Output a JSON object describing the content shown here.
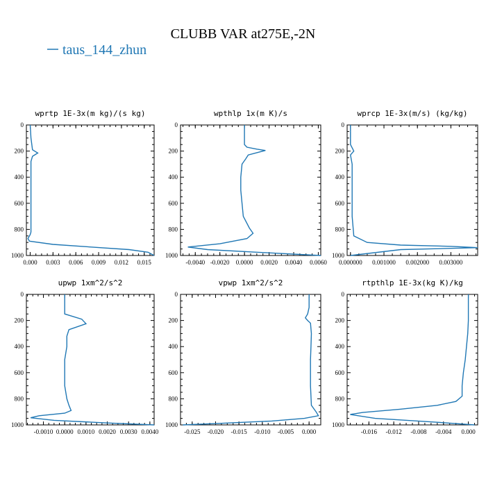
{
  "figure": {
    "title": "CLUBB VAR at275E,-2N",
    "legend_label": "taus_144_zhun",
    "series_color": "#1f77b4"
  },
  "chart_data": [
    {
      "type": "line",
      "title": "wprtp  1E-3x(m kg)/(s kg)",
      "xlim": [
        -0.0005,
        0.0163
      ],
      "ylim": [
        1000,
        0
      ],
      "xticks": [
        0.0,
        0.003,
        0.006,
        0.009,
        0.012,
        0.015
      ],
      "xtick_labels": [
        "0.000",
        "0.003",
        "0.006",
        "0.009",
        "0.012",
        "0.015"
      ],
      "yticks": [
        0,
        200,
        400,
        600,
        800,
        1000
      ],
      "ytick_labels": [
        "0",
        "200",
        "400",
        "600",
        "800",
        "1000"
      ],
      "series": [
        {
          "x": [
            0.0,
            0.0001,
            0.0003,
            0.001,
            0.0003,
            0.0001,
            0.0001,
            0.0001,
            0.0001,
            0.0001,
            0.0001,
            0.0001,
            0.0,
            -0.0003,
            -0.0001,
            0.003,
            0.008,
            0.013,
            0.0155,
            0.0163
          ],
          "y": [
            0,
            100,
            190,
            215,
            240,
            280,
            400,
            500,
            600,
            700,
            780,
            820,
            840,
            870,
            890,
            915,
            935,
            955,
            975,
            1000
          ]
        }
      ]
    },
    {
      "type": "line",
      "title": "wpthlp  1x(m K)/s",
      "xlim": [
        -0.0052,
        0.0062
      ],
      "ylim": [
        1000,
        0
      ],
      "xticks": [
        -0.004,
        -0.002,
        0.0,
        0.002,
        0.004,
        0.006
      ],
      "xtick_labels": [
        "-0.0040",
        "-0.0020",
        "0.0000",
        "0.0020",
        "0.0040",
        "0.0060"
      ],
      "yticks": [
        0,
        200,
        400,
        600,
        800,
        1000
      ],
      "ytick_labels": [
        "0",
        "200",
        "400",
        "600",
        "800",
        "1000"
      ],
      "series": [
        {
          "x": [
            0.0,
            0.0,
            0.0,
            0.0002,
            0.001,
            0.0017,
            0.0003,
            0.0001,
            -0.0002,
            -0.0003,
            -0.0003,
            -0.0002,
            -0.0001,
            0.0004,
            0.0007,
            0.0002,
            -0.002,
            -0.0046,
            -0.003,
            0.002,
            0.0062
          ],
          "y": [
            0,
            100,
            150,
            170,
            185,
            195,
            230,
            260,
            300,
            400,
            500,
            600,
            700,
            790,
            830,
            870,
            910,
            935,
            955,
            980,
            1000
          ]
        }
      ]
    },
    {
      "type": "line",
      "title": "wprcp  1E-3x(m/s) (kg/kg)",
      "xlim": [
        -0.0001,
        0.0038
      ],
      "ylim": [
        1000,
        0
      ],
      "xticks": [
        0.0,
        0.001,
        0.002,
        0.003
      ],
      "xtick_labels": [
        "0.000000",
        "0.001000",
        "0.002000",
        "0.003000"
      ],
      "yticks": [
        0,
        200,
        400,
        600,
        800,
        1000
      ],
      "ytick_labels": [
        "0",
        "200",
        "400",
        "600",
        "800",
        "1000"
      ],
      "series": [
        {
          "x": [
            0.0,
            0.0,
            0.0001,
            0.0,
            5e-05,
            5e-05,
            5e-05,
            5e-05,
            5e-05,
            0.0001,
            0.0005,
            0.0015,
            0.003,
            0.0038,
            0.0015,
            0.0
          ],
          "y": [
            0,
            150,
            200,
            230,
            300,
            400,
            500,
            600,
            700,
            850,
            900,
            920,
            930,
            940,
            955,
            1000
          ]
        }
      ]
    },
    {
      "type": "line",
      "title": "upwp  1xm^2/s^2",
      "xlim": [
        -0.0018,
        0.0042
      ],
      "ylim": [
        1000,
        0
      ],
      "xticks": [
        -0.001,
        0.0,
        0.001,
        0.002,
        0.003,
        0.004
      ],
      "xtick_labels": [
        "-0.0010",
        "0.0000",
        "0.0010",
        "0.0020",
        "0.0030",
        "0.0040"
      ],
      "yticks": [
        0,
        200,
        400,
        600,
        800,
        1000
      ],
      "ytick_labels": [
        "0",
        "200",
        "400",
        "600",
        "800",
        "1000"
      ],
      "series": [
        {
          "x": [
            0.0,
            0.0,
            0.0,
            0.0,
            0.0008,
            0.001,
            0.0002,
            0.0001,
            0.0001,
            0.0,
            0.0,
            0.0,
            0.0001,
            0.0002,
            0.0003,
            0.0,
            -0.0012,
            -0.0016,
            -0.0005,
            0.002,
            0.0042
          ],
          "y": [
            0,
            50,
            100,
            150,
            190,
            225,
            270,
            320,
            400,
            500,
            600,
            700,
            800,
            850,
            890,
            910,
            930,
            945,
            965,
            985,
            1000
          ]
        }
      ]
    },
    {
      "type": "line",
      "title": "vpwp  1xm^2/s^2",
      "xlim": [
        -0.0275,
        0.0025
      ],
      "ylim": [
        1000,
        0
      ],
      "xticks": [
        -0.025,
        -0.02,
        -0.015,
        -0.01,
        -0.005,
        0.0
      ],
      "xtick_labels": [
        "-0.025",
        "-0.020",
        "-0.015",
        "-0.010",
        "-0.005",
        "0.000"
      ],
      "yticks": [
        0,
        200,
        400,
        600,
        800,
        1000
      ],
      "ytick_labels": [
        "0",
        "200",
        "400",
        "600",
        "800",
        "1000"
      ],
      "series": [
        {
          "x": [
            0.0,
            0.0,
            -0.0003,
            -0.0008,
            -0.0003,
            0.0003,
            0.0005,
            0.0004,
            0.0003,
            0.0003,
            0.0003,
            0.0005,
            0.0015,
            0.002,
            -0.001,
            -0.008,
            -0.02,
            -0.027
          ],
          "y": [
            0,
            100,
            150,
            180,
            200,
            220,
            300,
            400,
            500,
            600,
            700,
            850,
            900,
            930,
            950,
            970,
            990,
            1000
          ]
        }
      ]
    },
    {
      "type": "line",
      "title": "rtpthlp  1E-3x(kg K)/kg",
      "xlim": [
        -0.0195,
        0.0015
      ],
      "ylim": [
        1000,
        0
      ],
      "xticks": [
        -0.016,
        -0.012,
        -0.008,
        -0.004,
        0.0
      ],
      "xtick_labels": [
        "-0.016",
        "-0.012",
        "-0.008",
        "-0.004",
        "0.000"
      ],
      "yticks": [
        0,
        200,
        400,
        600,
        800,
        1000
      ],
      "ytick_labels": [
        "0",
        "200",
        "400",
        "600",
        "800",
        "1000"
      ],
      "series": [
        {
          "x": [
            0.0,
            0.0,
            -0.0001,
            -0.0003,
            -0.0005,
            -0.0008,
            -0.001,
            -0.001,
            -0.002,
            -0.005,
            -0.011,
            -0.017,
            -0.019,
            -0.015,
            -0.005,
            0.001
          ],
          "y": [
            0,
            200,
            300,
            400,
            500,
            600,
            700,
            780,
            820,
            850,
            880,
            905,
            920,
            950,
            980,
            1000
          ]
        }
      ]
    }
  ]
}
